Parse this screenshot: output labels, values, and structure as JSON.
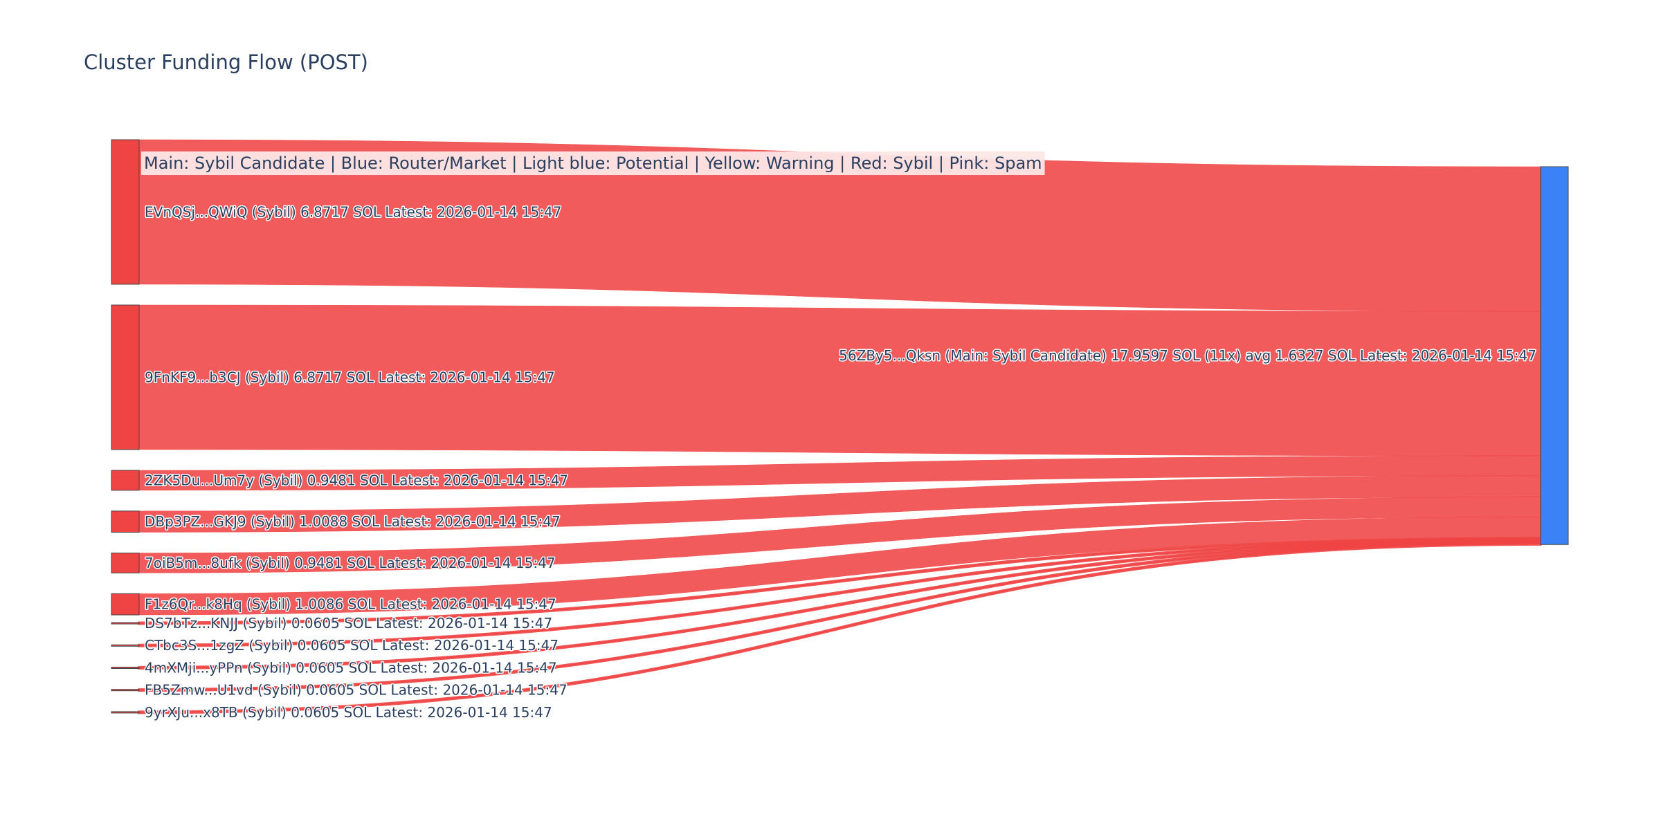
{
  "colors": {
    "sybil_link": "#EF4444",
    "sybil_node": "#EF4444",
    "main_node": "#3B82F6",
    "node_border": "#444444",
    "title_text": "#2a3f5f",
    "legend_bg": "#fde7e7"
  },
  "chart_data": {
    "type": "sankey",
    "title": "Cluster Funding Flow (POST)",
    "legend_text": "Main: Sybil Candidate  |  Blue: Router/Market | Light blue: Potential | Yellow: Warning | Red: Sybil | Pink: Spam",
    "target": {
      "label": "56ZBy5...Qksn (Main: Sybil Candidate) 17.9597 SOL (11x) avg 1.6327 SOL Latest: 2026-01-14 15:47",
      "value": 17.9597,
      "category": "Main: Sybil Candidate"
    },
    "sources": [
      {
        "label": "EVnQSj...QWiQ (Sybil) 6.8717 SOL Latest: 2026-01-14 15:47",
        "value": 6.8717,
        "category": "Sybil"
      },
      {
        "label": "9FnKF9...b3CJ (Sybil) 6.8717 SOL Latest: 2026-01-14 15:47",
        "value": 6.8717,
        "category": "Sybil"
      },
      {
        "label": "2ZK5Du...Um7y (Sybil) 0.9481 SOL Latest: 2026-01-14 15:47",
        "value": 0.9481,
        "category": "Sybil"
      },
      {
        "label": "DBp3PZ...GKJ9 (Sybil) 1.0088 SOL Latest: 2026-01-14 15:47",
        "value": 1.0088,
        "category": "Sybil"
      },
      {
        "label": "7oiB5m...8ufk (Sybil) 0.9481 SOL Latest: 2026-01-14 15:47",
        "value": 0.9481,
        "category": "Sybil"
      },
      {
        "label": "F1z6Qr...k8Hq (Sybil) 1.0086 SOL Latest: 2026-01-14 15:47",
        "value": 1.0086,
        "category": "Sybil"
      },
      {
        "label": "DS7bTz...KNJJ (Sybil) 0.0605 SOL Latest: 2026-01-14 15:47",
        "value": 0.0605,
        "category": "Sybil"
      },
      {
        "label": "CTbc3S...1zgZ (Sybil) 0.0605 SOL Latest: 2026-01-14 15:47",
        "value": 0.0605,
        "category": "Sybil"
      },
      {
        "label": "4mXMji...yPPn (Sybil) 0.0605 SOL Latest: 2026-01-14 15:47",
        "value": 0.0605,
        "category": "Sybil"
      },
      {
        "label": "FB5Zmw...U1vd (Sybil) 0.0605 SOL Latest: 2026-01-14 15:47",
        "value": 0.0605,
        "category": "Sybil"
      },
      {
        "label": "9yrXJu...x8TB (Sybil) 0.0605 SOL Latest: 2026-01-14 15:47",
        "value": 0.0605,
        "category": "Sybil"
      }
    ]
  }
}
